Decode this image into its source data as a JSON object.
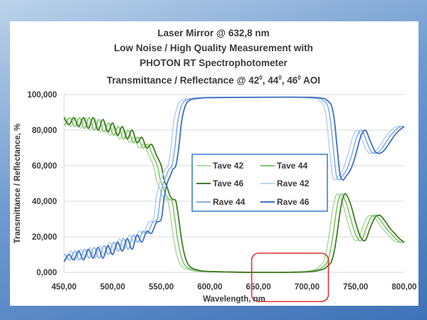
{
  "chart_data": {
    "type": "line",
    "title_lines": [
      "Laser Mirror @ 632,8 nm",
      "Low Noise / High Quality Measurement with",
      "PHOTON RT Spectrophotometer"
    ],
    "title_line4": {
      "prefix": "Transmittance / Reflectance @ 42",
      "sup1": "0",
      "mid1": ", 44",
      "sup2": "0",
      "mid2": ", 46",
      "sup3": "0",
      "suffix": " AOI"
    },
    "xlabel": "Wavelength, nm",
    "ylabel": "Transmittance / Reflectance, %",
    "xlim": [
      450,
      800
    ],
    "ylim": [
      0,
      100
    ],
    "x_ticks": [
      "450,00",
      "500,00",
      "550,00",
      "600,00",
      "650,00",
      "700,00",
      "750,00",
      "800,00"
    ],
    "y_ticks": [
      "0,000",
      "20,000",
      "40,000",
      "60,000",
      "80,000",
      "100,000"
    ],
    "grid": "horizontal",
    "legend_position": "center",
    "highlight_box_x_range": [
      643,
      722
    ],
    "series": [
      {
        "name": "Tave 42",
        "color": "#b3d9a6",
        "shift": -8,
        "kind": "T",
        "width": 1.6
      },
      {
        "name": "Tave 44",
        "color": "#7ec46a",
        "shift": -4,
        "kind": "T",
        "width": 1.6
      },
      {
        "name": "Tave 46",
        "color": "#3f7b23",
        "shift": 0,
        "kind": "T",
        "width": 1.8
      },
      {
        "name": "Rave 42",
        "color": "#bcd3ee",
        "shift": -8,
        "kind": "R",
        "width": 1.6
      },
      {
        "name": "Rave 44",
        "color": "#86b0e2",
        "shift": -4,
        "kind": "R",
        "width": 1.6
      },
      {
        "name": "Rave 46",
        "color": "#3e6fc0",
        "shift": 0,
        "kind": "R",
        "width": 1.8
      }
    ],
    "base_x": [
      450,
      455,
      460,
      465,
      470,
      475,
      480,
      485,
      490,
      495,
      500,
      505,
      510,
      515,
      520,
      525,
      530,
      535,
      540,
      545,
      550,
      553,
      556,
      559,
      562,
      565,
      568,
      571,
      575,
      580,
      590,
      600,
      650,
      700,
      715,
      720,
      725,
      728,
      731,
      734,
      737,
      740,
      745,
      750,
      755,
      760,
      765,
      770,
      775,
      780,
      785,
      790,
      795,
      800
    ],
    "base_T": [
      87,
      83,
      87,
      82,
      87,
      81,
      87,
      80,
      86,
      79,
      84,
      77,
      82,
      75,
      80,
      73,
      76,
      70,
      72,
      66,
      60,
      52,
      48,
      43,
      41,
      40,
      30,
      18,
      8,
      3,
      1,
      0.5,
      0,
      0.3,
      1.5,
      3,
      6,
      12,
      22,
      34,
      42,
      44,
      38,
      28,
      20,
      18,
      25,
      31,
      32,
      29,
      25,
      22,
      19,
      17
    ],
    "base_R": [
      6,
      10,
      7,
      12,
      7,
      13,
      8,
      14,
      8,
      15,
      10,
      17,
      12,
      19,
      13,
      21,
      17,
      23,
      22,
      28,
      30,
      42,
      50,
      54,
      58,
      60,
      70,
      85,
      94,
      97,
      98,
      98.3,
      98.5,
      98.5,
      98,
      97,
      94,
      86,
      70,
      55,
      52,
      54,
      58,
      66,
      76,
      80,
      74,
      68,
      67,
      69,
      73,
      77,
      80,
      82
    ]
  }
}
